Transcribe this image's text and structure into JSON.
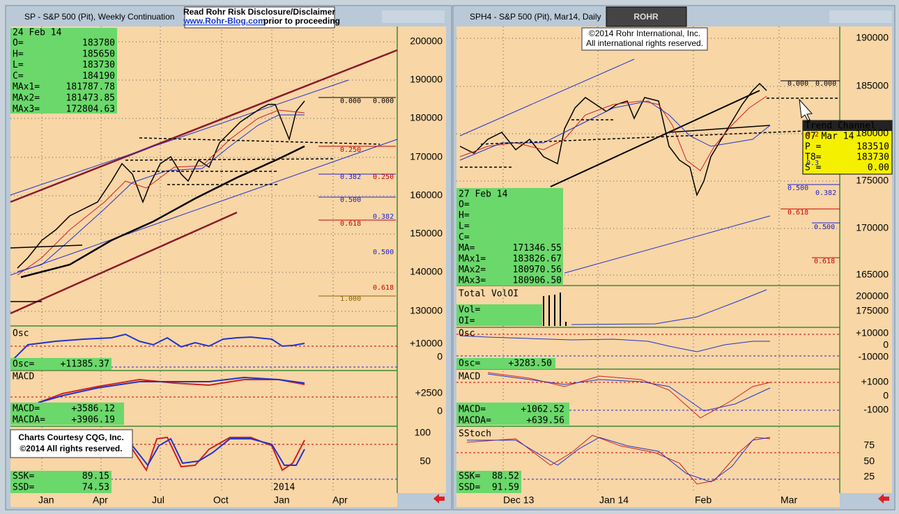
{
  "left_window": {
    "title": "SP - S&P 500 (Pit), Weekly Continuation",
    "disclaimer": {
      "line1": "Read Rohr Risk Disclosure/Disclaimer",
      "link": "www.Rohr-Blog.com",
      "line2": "prior to proceeding"
    },
    "info": {
      "date": "24 Feb 14",
      "rows": [
        [
          "O=",
          "183780"
        ],
        [
          "H=",
          "185650"
        ],
        [
          "L=",
          "183730"
        ],
        [
          "C=",
          "184190"
        ],
        [
          "MAx1=",
          "181787.78"
        ],
        [
          "MAx2=",
          "181473.85"
        ],
        [
          "MAx3=",
          "172804.63"
        ]
      ]
    },
    "price_axis": [
      "200000",
      "190000",
      "180000",
      "170000",
      "160000",
      "150000",
      "140000",
      "130000"
    ],
    "fib_levels": [
      "0.000",
      "0.000",
      "0.250",
      "0.382",
      "0.250",
      "0.500",
      "0.382",
      "0.618",
      "0.500",
      "0.618",
      "1.000"
    ],
    "osc": {
      "title": "Osc",
      "label": "Osc=",
      "value": "+11385.37",
      "axis": [
        "+10000",
        "0"
      ]
    },
    "macd": {
      "title": "MACD",
      "rows": [
        [
          "MACD=",
          "+3586.12"
        ],
        [
          "MACDA=",
          "+3906.19"
        ]
      ],
      "axis": [
        "+2500",
        "0"
      ]
    },
    "stoch": {
      "credit": [
        "Charts Courtesy CQG, Inc.",
        "©2014 All rights reserved."
      ],
      "rows": [
        [
          "SSK=",
          "89.15"
        ],
        [
          "SSD=",
          "74.53"
        ]
      ],
      "axis": [
        "100",
        "50"
      ],
      "year_label": "2014"
    },
    "x_axis": [
      "Jan",
      "Apr",
      "Jul",
      "Oct",
      "Jan",
      "Apr"
    ]
  },
  "right_window": {
    "title": "SPH4 - S&P 500 (Pit), Mar14, Daily",
    "logo": "ROHR",
    "copyright": [
      "©2014 Rohr International, Inc.",
      "All international rights reserved."
    ],
    "price_axis": [
      "190000",
      "185000",
      "180000",
      "175000",
      "170000",
      "165000"
    ],
    "fib_levels": [
      "0.000",
      "0.000",
      "0.2",
      "0.3",
      "0.500",
      "0.382",
      "0.618",
      "0.500",
      "0.618"
    ],
    "trend_channel": {
      "title": "Trend Channel",
      "date": "07 Mar 14",
      "rows": [
        [
          "P =",
          "183510"
        ],
        [
          "T8=",
          "183730"
        ],
        [
          "S =",
          "0.00"
        ]
      ]
    },
    "info": {
      "date": "27 Feb 14",
      "rows": [
        [
          "O=",
          ""
        ],
        [
          "H=",
          ""
        ],
        [
          "L=",
          ""
        ],
        [
          "C=",
          ""
        ],
        [
          "MA=",
          "171346.55"
        ],
        [
          "MAx1=",
          "183826.67"
        ],
        [
          "MAx2=",
          "180970.56"
        ],
        [
          "MAx3=",
          "180906.50"
        ]
      ]
    },
    "volume": {
      "title": "Total VolOI",
      "rows": [
        "Vol=",
        "OI="
      ],
      "axis": [
        "200000",
        "175000"
      ]
    },
    "osc": {
      "title": "Osc",
      "label": "Osc=",
      "value": "+3283.50",
      "axis": [
        "+10000",
        "0",
        "-10000"
      ]
    },
    "macd": {
      "title": "MACD",
      "rows": [
        [
          "MACD=",
          "+1062.52"
        ],
        [
          "MACDA=",
          "+639.56"
        ]
      ],
      "axis": [
        "+1000",
        "0",
        "-1000"
      ]
    },
    "stoch": {
      "title": "SStoch",
      "rows": [
        [
          "SSK=",
          "88.52"
        ],
        [
          "SSD=",
          "91.59"
        ]
      ],
      "axis": [
        "75",
        "50",
        "25"
      ]
    },
    "x_axis": [
      "Dec 13",
      "Jan 14",
      "Feb",
      "Mar"
    ]
  }
}
